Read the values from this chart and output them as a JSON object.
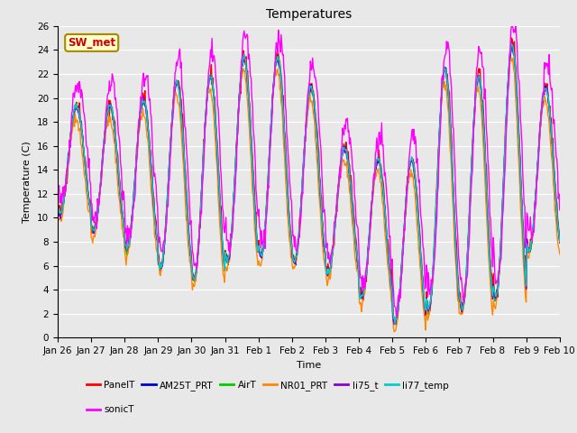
{
  "title": "Temperatures",
  "xlabel": "Time",
  "ylabel": "Temperature (C)",
  "ylim": [
    0,
    26
  ],
  "yticks": [
    0,
    2,
    4,
    6,
    8,
    10,
    12,
    14,
    16,
    18,
    20,
    22,
    24,
    26
  ],
  "date_labels": [
    "Jan 26",
    "Jan 27",
    "Jan 28",
    "Jan 29",
    "Jan 30",
    "Jan 31",
    "Feb 1",
    "Feb 2",
    "Feb 3",
    "Feb 4",
    "Feb 5",
    "Feb 6",
    "Feb 7",
    "Feb 8",
    "Feb 9",
    "Feb 10"
  ],
  "n_days": 15,
  "series": {
    "PanelT": {
      "color": "#FF0000",
      "lw": 1.0
    },
    "AM25T_PRT": {
      "color": "#0000CC",
      "lw": 1.0
    },
    "AirT": {
      "color": "#00CC00",
      "lw": 1.0
    },
    "NR01_PRT": {
      "color": "#FF8800",
      "lw": 1.0
    },
    "li75_t": {
      "color": "#8800CC",
      "lw": 1.0
    },
    "li77_temp": {
      "color": "#00CCCC",
      "lw": 1.0
    },
    "sonicT": {
      "color": "#FF00FF",
      "lw": 1.0
    }
  },
  "day_mins": [
    10.5,
    9.0,
    7.5,
    6.0,
    5.0,
    6.5,
    7.0,
    6.5,
    5.5,
    3.5,
    1.5,
    2.5,
    2.5,
    3.5,
    7.5
  ],
  "day_maxs": [
    19.5,
    19.5,
    20.0,
    21.5,
    22.0,
    23.5,
    23.5,
    21.0,
    16.0,
    15.0,
    15.0,
    22.5,
    22.0,
    24.5,
    21.0
  ],
  "annotation_text": "SW_met",
  "annotation_color": "#CC0000",
  "annotation_bg": "#FFFFCC",
  "annotation_border": "#AA8800",
  "bg_color": "#E8E8E8",
  "title_fontsize": 10,
  "axis_label_fontsize": 8,
  "tick_fontsize": 7.5,
  "legend_fontsize": 7.5
}
